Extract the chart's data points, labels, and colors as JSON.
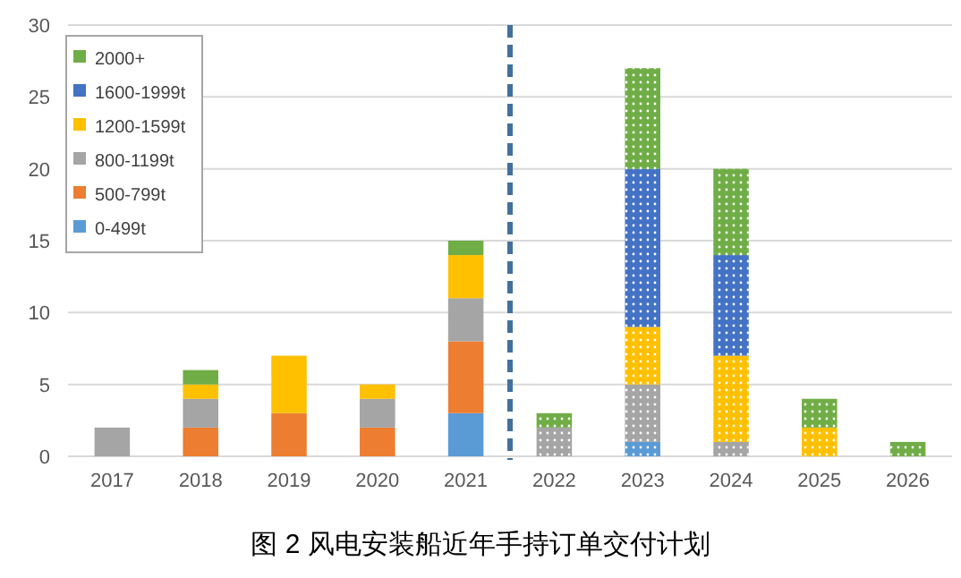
{
  "chart_data": {
    "type": "bar",
    "title": "图 2 风电安装船近年手持订单交付计划",
    "stacked": true,
    "categories": [
      "2017",
      "2018",
      "2019",
      "2020",
      "2021",
      "2022",
      "2023",
      "2024",
      "2025",
      "2026"
    ],
    "series": [
      {
        "name": "0-499t",
        "color": "#5b9bd5",
        "values": [
          null,
          null,
          null,
          null,
          3,
          null,
          1,
          null,
          null,
          null
        ]
      },
      {
        "name": "500-799t",
        "color": "#ed7d31",
        "values": [
          null,
          2,
          3,
          2,
          5,
          null,
          null,
          null,
          null,
          null
        ]
      },
      {
        "name": "800-1199t",
        "color": "#a5a5a5",
        "values": [
          2,
          2,
          null,
          2,
          3,
          2,
          4,
          1,
          null,
          null
        ]
      },
      {
        "name": "1200-1599t",
        "color": "#ffc000",
        "values": [
          null,
          1,
          4,
          1,
          3,
          null,
          4,
          6,
          2,
          null
        ]
      },
      {
        "name": "1600-1999t",
        "color": "#4472c4",
        "values": [
          null,
          null,
          null,
          null,
          null,
          null,
          11,
          7,
          null,
          null
        ]
      },
      {
        "name": "2000+",
        "color": "#70ad47",
        "values": [
          null,
          1,
          null,
          null,
          1,
          1,
          7,
          6,
          2,
          1
        ]
      }
    ],
    "ylim": [
      0,
      30
    ],
    "yticks": [
      0,
      5,
      10,
      15,
      20,
      25,
      30
    ],
    "grid": "y",
    "legend": "top left"
  }
}
